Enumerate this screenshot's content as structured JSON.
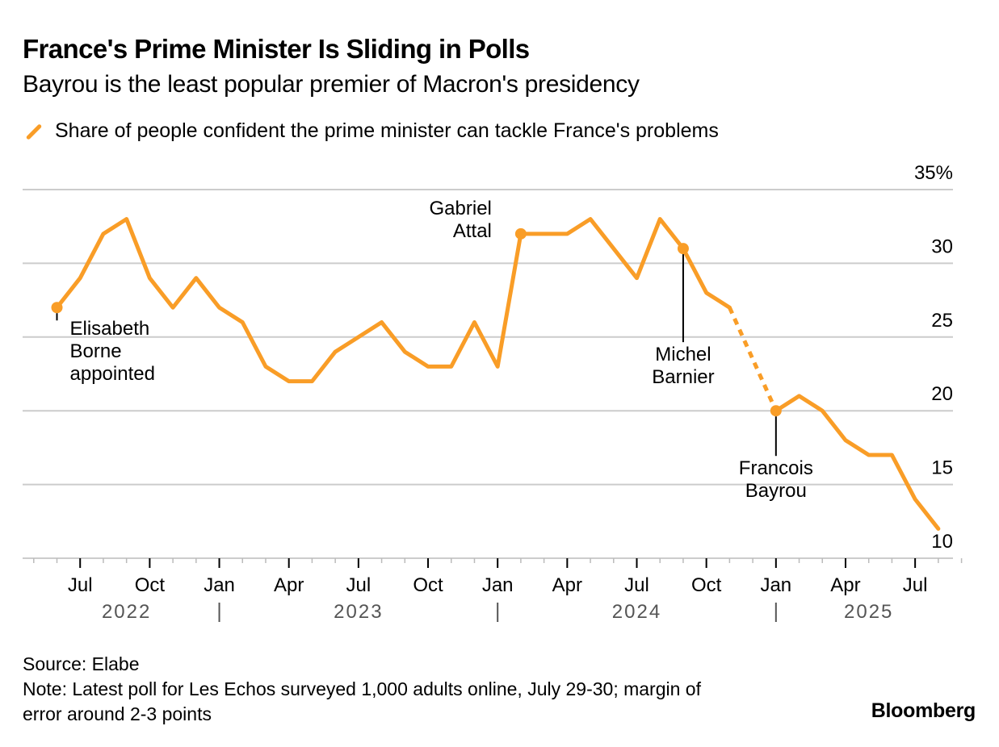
{
  "header": {
    "title": "France's Prime Minister Is Sliding in Polls",
    "subtitle": "Bayrou is the least popular premier of Macron's presidency"
  },
  "legend": {
    "icon": "line-swatch-icon",
    "label": "Share of people confident the prime minister can tackle France's problems"
  },
  "footer": {
    "source": "Source: Elabe",
    "note_line1": "Note: Latest poll for Les Echos surveyed 1,000 adults online, July 29-30; margin of",
    "note_line2": "error around 2-3 points",
    "brand": "Bloomberg"
  },
  "colors": {
    "series": "#f99d27",
    "grid": "#cccccc",
    "text": "#000000",
    "year_label": "#555555"
  },
  "chart_data": {
    "type": "line",
    "title": "France's Prime Minister Is Sliding in Polls",
    "subtitle": "Bayrou is the least popular premier of Macron's presidency",
    "xlabel": "",
    "ylabel": "",
    "ylim": [
      10,
      35
    ],
    "yticks": [
      35,
      30,
      25,
      20,
      15,
      10
    ],
    "ytick_labels": [
      "35%",
      "30",
      "25",
      "20",
      "15",
      "10"
    ],
    "grid": true,
    "legend_position": "top-left",
    "x_month_ticks": [
      {
        "month": "2022-07",
        "label": "Jul"
      },
      {
        "month": "2022-10",
        "label": "Oct"
      },
      {
        "month": "2023-01",
        "label": "Jan"
      },
      {
        "month": "2023-04",
        "label": "Apr"
      },
      {
        "month": "2023-07",
        "label": "Jul"
      },
      {
        "month": "2023-10",
        "label": "Oct"
      },
      {
        "month": "2024-01",
        "label": "Jan"
      },
      {
        "month": "2024-04",
        "label": "Apr"
      },
      {
        "month": "2024-07",
        "label": "Jul"
      },
      {
        "month": "2024-10",
        "label": "Oct"
      },
      {
        "month": "2025-01",
        "label": "Jan"
      },
      {
        "month": "2025-04",
        "label": "Apr"
      },
      {
        "month": "2025-07",
        "label": "Jul"
      }
    ],
    "x_year_labels": [
      {
        "label": "2022",
        "center_month": "2022-09"
      },
      {
        "label": "2023",
        "center_month": "2023-07"
      },
      {
        "label": "2024",
        "center_month": "2024-07"
      },
      {
        "label": "2025",
        "center_month": "2025-05"
      }
    ],
    "year_dividers": [
      "2023-01",
      "2024-01",
      "2025-01"
    ],
    "x_range": [
      "2022-05",
      "2025-09"
    ],
    "series": [
      {
        "name": "Share of people confident the prime minister can tackle France's problems",
        "points": [
          {
            "month": "2022-06",
            "value": 27
          },
          {
            "month": "2022-07",
            "value": 29
          },
          {
            "month": "2022-08",
            "value": 32
          },
          {
            "month": "2022-09",
            "value": 33
          },
          {
            "month": "2022-10",
            "value": 29
          },
          {
            "month": "2022-11",
            "value": 27
          },
          {
            "month": "2022-12",
            "value": 29
          },
          {
            "month": "2023-01",
            "value": 27
          },
          {
            "month": "2023-02",
            "value": 26
          },
          {
            "month": "2023-03",
            "value": 23
          },
          {
            "month": "2023-04",
            "value": 22
          },
          {
            "month": "2023-05",
            "value": 22
          },
          {
            "month": "2023-06",
            "value": 24
          },
          {
            "month": "2023-07",
            "value": 25
          },
          {
            "month": "2023-08",
            "value": 26
          },
          {
            "month": "2023-09",
            "value": 24
          },
          {
            "month": "2023-10",
            "value": 23
          },
          {
            "month": "2023-11",
            "value": 23
          },
          {
            "month": "2023-12",
            "value": 26
          },
          {
            "month": "2024-01",
            "value": 23
          },
          {
            "month": "2024-02",
            "value": 32
          },
          {
            "month": "2024-03",
            "value": 32
          },
          {
            "month": "2024-04",
            "value": 32
          },
          {
            "month": "2024-05",
            "value": 33
          },
          {
            "month": "2024-07",
            "value": 29
          },
          {
            "month": "2024-08",
            "value": 33
          },
          {
            "month": "2024-09",
            "value": 31
          },
          {
            "month": "2024-10",
            "value": 28
          },
          {
            "month": "2024-11",
            "value": 27
          },
          {
            "month": "2025-01",
            "value": 20
          },
          {
            "month": "2025-02",
            "value": 21
          },
          {
            "month": "2025-03",
            "value": 20
          },
          {
            "month": "2025-04",
            "value": 18
          },
          {
            "month": "2025-05",
            "value": 17
          },
          {
            "month": "2025-06",
            "value": 17
          },
          {
            "month": "2025-07",
            "value": 14
          },
          {
            "month": "2025-08",
            "value": 12
          }
        ],
        "dashed_gap": {
          "from": "2024-11",
          "to": "2025-01"
        }
      }
    ],
    "annotations": [
      {
        "month": "2022-06",
        "value": 27,
        "lines": [
          "Elisabeth",
          "Borne",
          "appointed"
        ],
        "placement": "below-right"
      },
      {
        "month": "2024-02",
        "value": 32,
        "lines": [
          "Gabriel",
          "Attal"
        ],
        "placement": "left"
      },
      {
        "month": "2024-09",
        "value": 31,
        "lines": [
          "Michel",
          "Barnier"
        ],
        "placement": "below"
      },
      {
        "month": "2025-01",
        "value": 20,
        "lines": [
          "Francois",
          "Bayrou"
        ],
        "placement": "below"
      }
    ]
  }
}
